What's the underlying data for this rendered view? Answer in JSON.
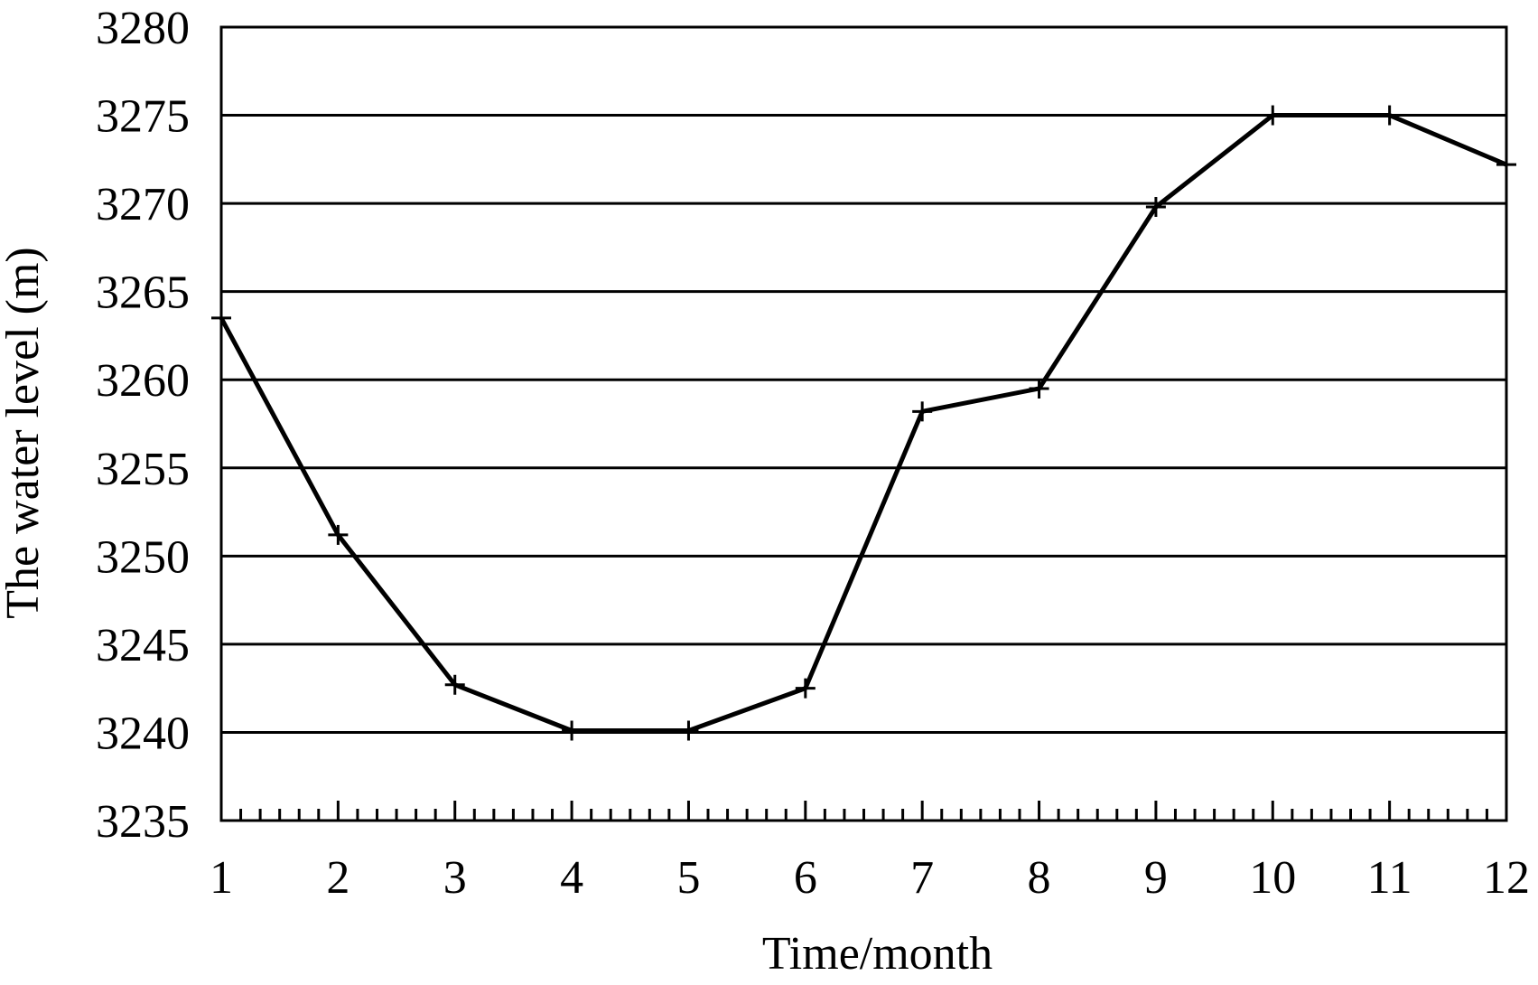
{
  "chart_data": {
    "type": "line",
    "title": "",
    "xlabel": "Time/month",
    "ylabel": "The water level (m)",
    "categories": [
      "1",
      "2",
      "3",
      "4",
      "5",
      "6",
      "7",
      "8",
      "9",
      "10",
      "11",
      "12"
    ],
    "x": [
      1,
      2,
      3,
      4,
      5,
      6,
      7,
      8,
      9,
      10,
      11,
      12
    ],
    "xlim": [
      1,
      12
    ],
    "ylim": [
      3235,
      3280
    ],
    "yticks": [
      3235,
      3240,
      3245,
      3250,
      3255,
      3260,
      3265,
      3270,
      3275,
      3280
    ],
    "ytick_labels": [
      "3235",
      "3240",
      "3245",
      "3250",
      "3255",
      "3260",
      "3265",
      "3270",
      "3275",
      "3280"
    ],
    "x_minor_ticks_per_interval": 6,
    "grid": "horizontal",
    "legend": "none",
    "series": [
      {
        "values": [
          3263.5,
          3251.2,
          3242.7,
          3240.1,
          3240.1,
          3242.5,
          3258.2,
          3259.5,
          3269.8,
          3275.0,
          3275.0,
          3272.2
        ],
        "marker": "plus",
        "color": "#000000"
      }
    ]
  }
}
